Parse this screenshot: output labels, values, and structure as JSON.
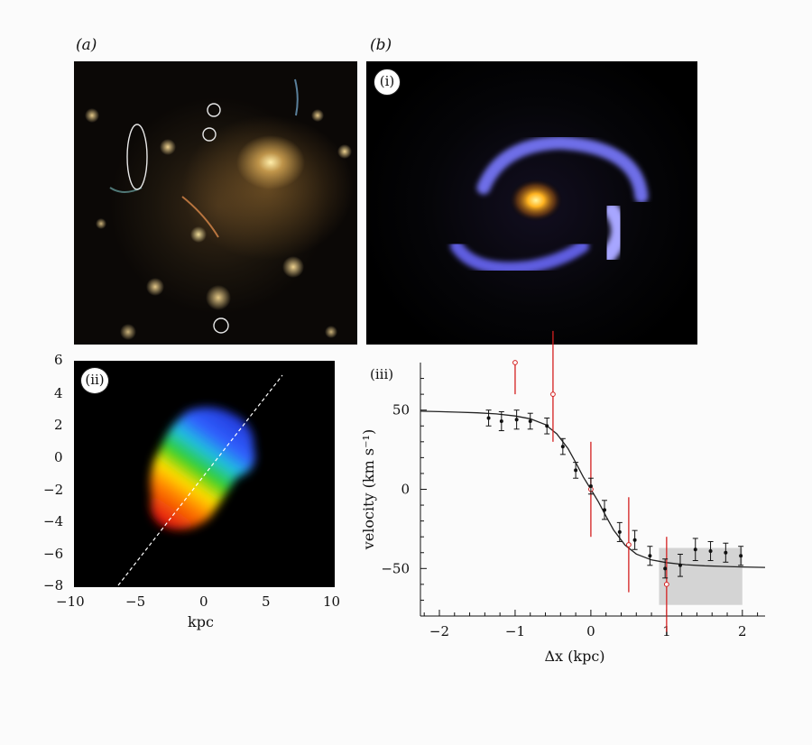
{
  "figure": {
    "panel_a_label": "(a)",
    "panel_b_label": "(b)",
    "sub_i": "(i)",
    "sub_ii": "(ii)",
    "sub_iii": "(iii)"
  },
  "panel_ii": {
    "y_ticks": [
      "6",
      "4",
      "2",
      "0",
      "−2",
      "−4",
      "−6",
      "−8"
    ],
    "x_ticks": [
      "−10",
      "−5",
      "0",
      "5",
      "10"
    ],
    "xlabel": "kpc"
  },
  "chart_data": {
    "type": "scatter",
    "title": "",
    "xlabel": "Δx (kpc)",
    "ylabel": "velocity (km s⁻¹)",
    "xlim": [
      -2.25,
      2.3
    ],
    "ylim": [
      -80,
      80
    ],
    "x_ticks": [
      "−2",
      "−1",
      "0",
      "1",
      "2"
    ],
    "y_ticks": [
      "50",
      "0",
      "−50"
    ],
    "shaded_region": {
      "x": [
        0.9,
        2.0
      ],
      "y": [
        -73,
        -37
      ]
    },
    "series": [
      {
        "name": "black points",
        "color": "#111111",
        "x": [
          -1.35,
          -1.18,
          -0.98,
          -0.8,
          -0.58,
          -0.37,
          -0.2,
          0.0,
          0.18,
          0.38,
          0.58,
          0.78,
          0.98,
          1.18,
          1.38,
          1.58,
          1.78,
          1.98
        ],
        "y": [
          45,
          43,
          44,
          43,
          40,
          27,
          12,
          2,
          -13,
          -27,
          -32,
          -42,
          -50,
          -48,
          -38,
          -39,
          -40,
          -42
        ],
        "err": [
          5,
          6,
          6,
          5,
          5,
          5,
          5,
          5,
          6,
          6,
          6,
          6,
          6,
          7,
          7,
          6,
          6,
          6
        ]
      },
      {
        "name": "red points",
        "color": "#d42020",
        "x": [
          -1.0,
          -0.5,
          0.0,
          0.5,
          1.0
        ],
        "y": [
          80,
          60,
          0,
          -35,
          -60
        ],
        "err_low": [
          20,
          30,
          30,
          30,
          30
        ],
        "err_high": [
          0,
          40,
          30,
          30,
          30
        ]
      }
    ],
    "curve": {
      "name": "model",
      "x": [
        -2.25,
        -2.0,
        -1.75,
        -1.5,
        -1.25,
        -1.0,
        -0.8,
        -0.6,
        -0.45,
        -0.3,
        -0.2,
        -0.1,
        0.0,
        0.1,
        0.2,
        0.3,
        0.45,
        0.6,
        0.8,
        1.0,
        1.25,
        1.5,
        1.75,
        2.0,
        2.3
      ],
      "y": [
        49.3,
        49.0,
        48.7,
        48.3,
        47.6,
        46.3,
        44.5,
        40.8,
        35.0,
        25.6,
        16.9,
        7.8,
        0,
        -7.9,
        -17.0,
        -25.7,
        -35.2,
        -40.9,
        -44.6,
        -46.3,
        -47.6,
        -48.3,
        -48.7,
        -49.0,
        -49.3
      ]
    }
  }
}
